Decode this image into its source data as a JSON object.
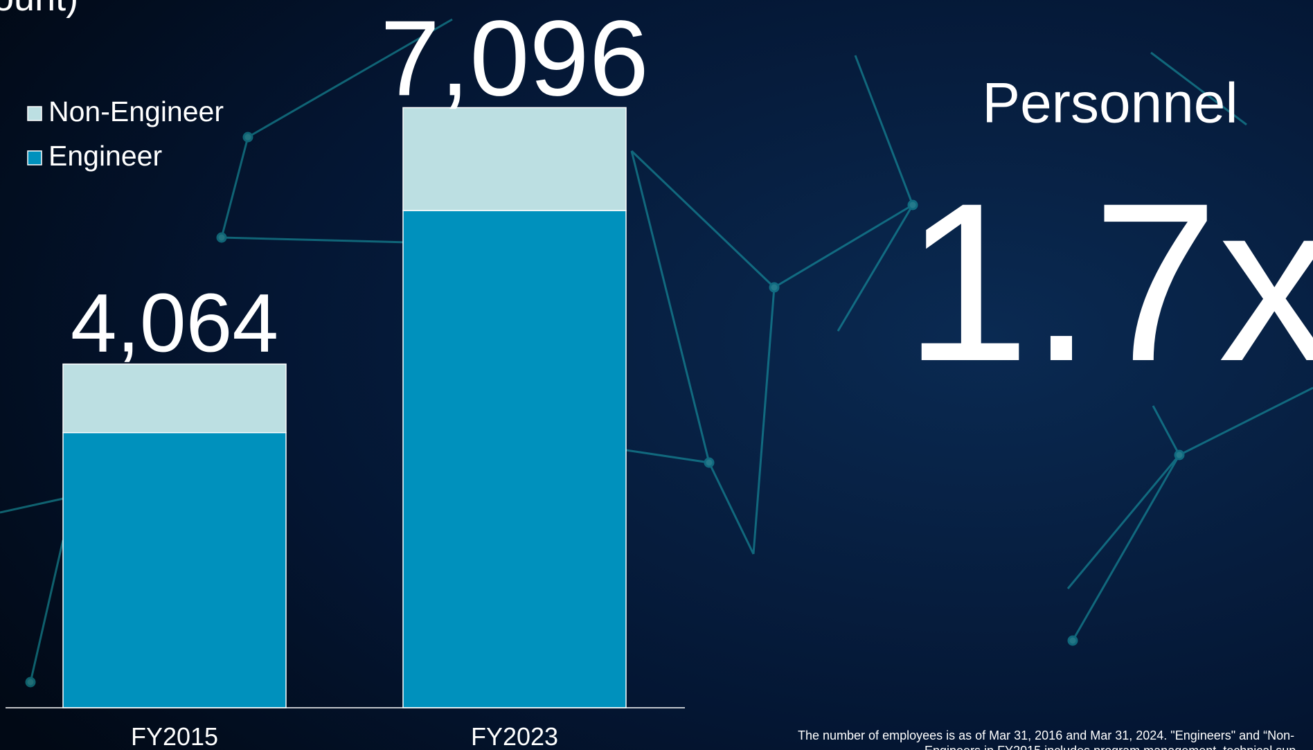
{
  "chart_data": {
    "type": "stacked-bar",
    "title_fragment": "ount)",
    "categories": [
      "FY2015",
      "FY2023"
    ],
    "series": [
      {
        "name": "Engineer",
        "color": "#0091bd",
        "values": [
          3253,
          5879
        ]
      },
      {
        "name": "Non-Engineer",
        "color": "#bcdfe2",
        "values": [
          811,
          1217
        ]
      }
    ],
    "totals": [
      4064,
      7096
    ],
    "total_labels": [
      "4,064",
      "7,096"
    ],
    "ylim": [
      0,
      8000
    ],
    "headline": "Personnel",
    "multiplier": "1.7x",
    "footnote": [
      "The number of employees is as of Mar 31, 2016 and Mar 31, 2024. \"Engineers\" and “Non-",
      "Engineers in FY2015 includes program management, technical sup"
    ]
  }
}
